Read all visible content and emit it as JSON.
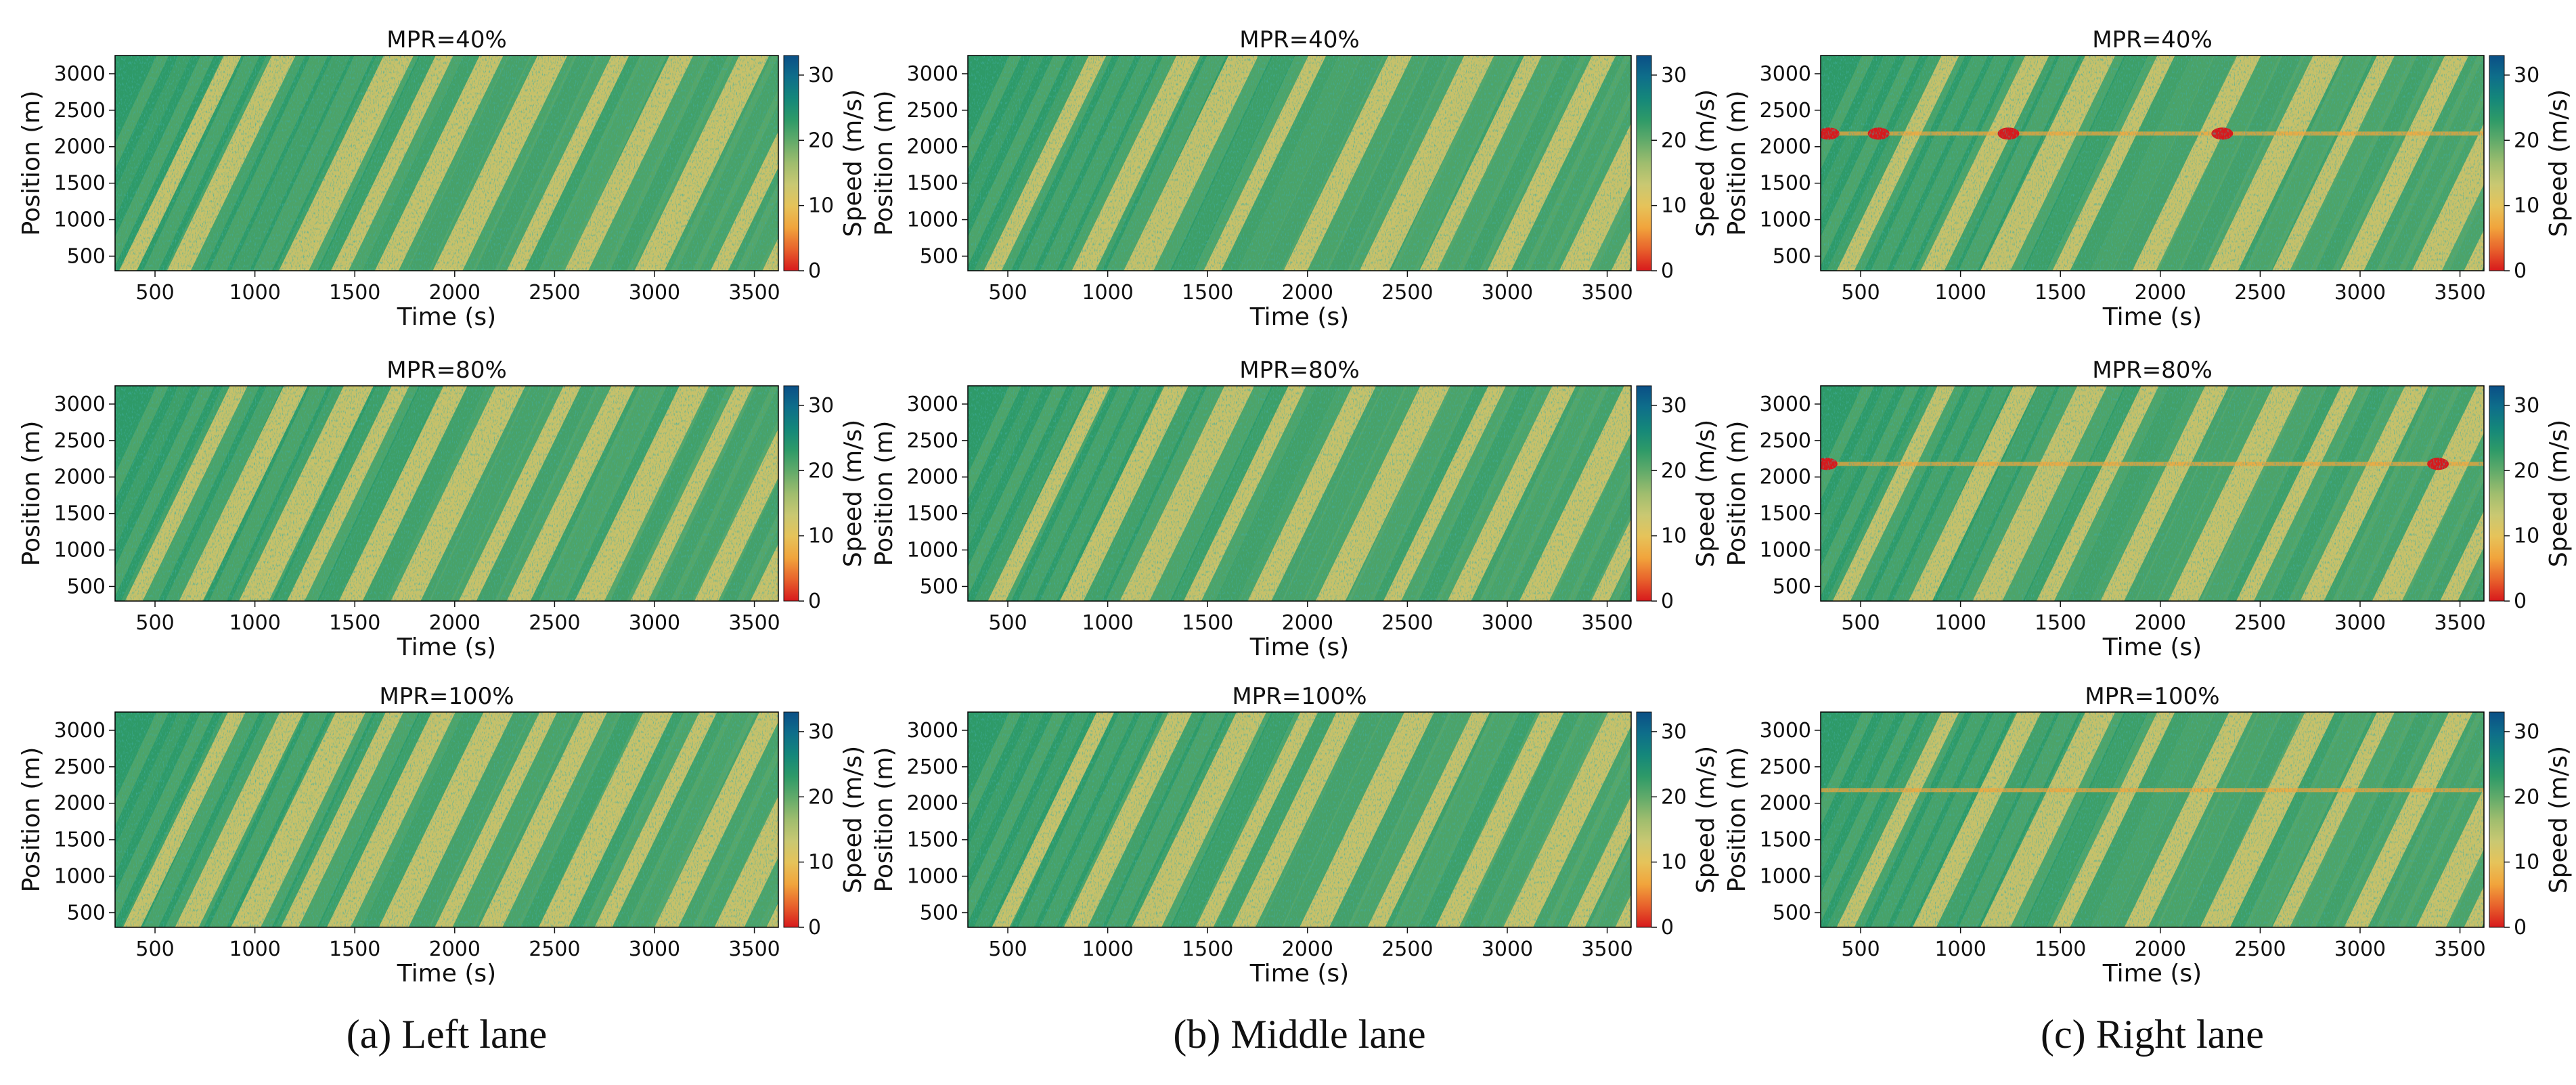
{
  "colors": {
    "speed_scale": [
      "#d7191c",
      "#e8622c",
      "#f1a43c",
      "#e6c35a",
      "#c9c872",
      "#9fbd6e",
      "#63ab6a",
      "#2e9a68",
      "#14877a",
      "#0e6e8a",
      "#0a4f86"
    ],
    "band": "#d8c56a",
    "frame": "#000000"
  },
  "chart_data": [
    {
      "type": "heatmap",
      "panel": "left-40",
      "title": "MPR=40%",
      "xlabel": "Time (s)",
      "ylabel": "Position (m)",
      "colorbar_label": "Speed (m/s)",
      "xlim": [
        300,
        3620
      ],
      "ylim": [
        300,
        3250
      ],
      "clim": [
        0,
        33
      ],
      "xticks": [
        500,
        1000,
        1500,
        2000,
        2500,
        3000,
        3500
      ],
      "yticks": [
        500,
        1000,
        1500,
        2000,
        2500,
        3000
      ],
      "cticks": [
        0,
        10,
        20,
        30
      ],
      "congestion_wave_start_times": [
        320,
        560,
        1120,
        1380,
        1600,
        1890,
        2260,
        2550,
        2900,
        3280,
        3540
      ],
      "bottleneck_position": null,
      "bottleneck_times": []
    },
    {
      "type": "heatmap",
      "panel": "middle-40",
      "title": "MPR=40%",
      "xlabel": "Time (s)",
      "ylabel": "Position (m)",
      "colorbar_label": "Speed (m/s)",
      "xlim": [
        300,
        3620
      ],
      "ylim": [
        300,
        3250
      ],
      "clim": [
        0,
        33
      ],
      "xticks": [
        500,
        1000,
        1500,
        2000,
        2500,
        3000,
        3500
      ],
      "yticks": [
        500,
        1000,
        1500,
        2000,
        2500,
        3000
      ],
      "cticks": [
        0,
        10,
        20,
        30
      ],
      "congestion_wave_start_times": [
        380,
        820,
        1080,
        1480,
        1880,
        2260,
        2560,
        2900,
        3260,
        3520
      ],
      "bottleneck_position": null,
      "bottleneck_times": []
    },
    {
      "type": "heatmap",
      "panel": "right-40",
      "title": "MPR=40%",
      "xlabel": "Time (s)",
      "ylabel": "Position (m)",
      "colorbar_label": "Speed (m/s)",
      "xlim": [
        300,
        3620
      ],
      "ylim": [
        300,
        3250
      ],
      "clim": [
        0,
        33
      ],
      "xticks": [
        500,
        1000,
        1500,
        2000,
        2500,
        3000,
        3500
      ],
      "yticks": [
        500,
        1000,
        1500,
        2000,
        2500,
        3000
      ],
      "cticks": [
        0,
        10,
        20,
        30
      ],
      "congestion_wave_start_times": [
        380,
        800,
        1100,
        1460,
        1860,
        2240,
        2560,
        2900,
        3260,
        3520
      ],
      "bottleneck_position": 2180,
      "bottleneck_times": [
        340,
        590,
        1240,
        2310
      ]
    },
    {
      "type": "heatmap",
      "panel": "left-80",
      "title": "MPR=80%",
      "xlabel": "Time (s)",
      "ylabel": "Position (m)",
      "colorbar_label": "Speed (m/s)",
      "xlim": [
        300,
        3620
      ],
      "ylim": [
        300,
        3250
      ],
      "clim": [
        0,
        33
      ],
      "xticks": [
        500,
        1000,
        1500,
        2000,
        2500,
        3000,
        3500
      ],
      "yticks": [
        500,
        1000,
        1500,
        2000,
        2500,
        3000
      ],
      "cticks": [
        0,
        10,
        20,
        30
      ],
      "congestion_wave_start_times": [
        350,
        620,
        920,
        1160,
        1420,
        1680,
        2020,
        2260,
        2600,
        2880,
        3200,
        3480
      ],
      "bottleneck_position": null,
      "bottleneck_times": []
    },
    {
      "type": "heatmap",
      "panel": "middle-80",
      "title": "MPR=80%",
      "xlabel": "Time (s)",
      "ylabel": "Position (m)",
      "colorbar_label": "Speed (m/s)",
      "xlim": [
        300,
        3620
      ],
      "ylim": [
        300,
        3250
      ],
      "clim": [
        0,
        33
      ],
      "xticks": [
        500,
        1000,
        1500,
        2000,
        2500,
        3000,
        3500
      ],
      "yticks": [
        500,
        1000,
        1500,
        2000,
        2500,
        3000
      ],
      "cticks": [
        0,
        10,
        20,
        30
      ],
      "congestion_wave_start_times": [
        400,
        760,
        1060,
        1380,
        1700,
        2040,
        2380,
        2700,
        3060,
        3420
      ],
      "bottleneck_position": null,
      "bottleneck_times": []
    },
    {
      "type": "heatmap",
      "panel": "right-80",
      "title": "MPR=80%",
      "xlabel": "Time (s)",
      "ylabel": "Position (m)",
      "colorbar_label": "Speed (m/s)",
      "xlim": [
        300,
        3620
      ],
      "ylim": [
        300,
        3250
      ],
      "clim": [
        0,
        33
      ],
      "xticks": [
        500,
        1000,
        1500,
        2000,
        2500,
        3000,
        3500
      ],
      "yticks": [
        500,
        1000,
        1500,
        2000,
        2500,
        3000
      ],
      "cticks": [
        0,
        10,
        20,
        30
      ],
      "congestion_wave_start_times": [
        360,
        740,
        1060,
        1380,
        1700,
        2040,
        2380,
        2700,
        3060,
        3400
      ],
      "bottleneck_position": 2180,
      "bottleneck_times": [
        330,
        3390
      ]
    },
    {
      "type": "heatmap",
      "panel": "left-100",
      "title": "MPR=100%",
      "xlabel": "Time (s)",
      "ylabel": "Position (m)",
      "colorbar_label": "Speed (m/s)",
      "xlim": [
        300,
        3620
      ],
      "ylim": [
        300,
        3250
      ],
      "clim": [
        0,
        33
      ],
      "xticks": [
        500,
        1000,
        1500,
        2000,
        2500,
        3000,
        3500
      ],
      "yticks": [
        500,
        1000,
        1500,
        2000,
        2500,
        3000
      ],
      "cticks": [
        0,
        10,
        20,
        30
      ],
      "congestion_wave_start_times": [
        340,
        600,
        880,
        1130,
        1360,
        1620,
        1900,
        2120,
        2420,
        2700,
        3000,
        3300,
        3560
      ],
      "bottleneck_position": null,
      "bottleneck_times": []
    },
    {
      "type": "heatmap",
      "panel": "middle-100",
      "title": "MPR=100%",
      "xlabel": "Time (s)",
      "ylabel": "Position (m)",
      "colorbar_label": "Speed (m/s)",
      "xlim": [
        300,
        3620
      ],
      "ylim": [
        300,
        3250
      ],
      "clim": [
        0,
        33
      ],
      "xticks": [
        500,
        1000,
        1500,
        2000,
        2500,
        3000,
        3500
      ],
      "yticks": [
        500,
        1000,
        1500,
        2000,
        2500,
        3000
      ],
      "cticks": [
        0,
        10,
        20,
        30
      ],
      "congestion_wave_start_times": [
        420,
        780,
        1120,
        1440,
        1620,
        1960,
        2300,
        2640,
        2980,
        3300,
        3540
      ],
      "bottleneck_position": null,
      "bottleneck_times": []
    },
    {
      "type": "heatmap",
      "panel": "right-100",
      "title": "MPR=100%",
      "xlabel": "Time (s)",
      "ylabel": "Position (m)",
      "colorbar_label": "Speed (m/s)",
      "xlim": [
        300,
        3620
      ],
      "ylim": [
        300,
        3250
      ],
      "clim": [
        0,
        33
      ],
      "xticks": [
        500,
        1000,
        1500,
        2000,
        2500,
        3000,
        3500
      ],
      "yticks": [
        500,
        1000,
        1500,
        2000,
        2500,
        3000
      ],
      "cticks": [
        0,
        10,
        20,
        30
      ],
      "congestion_wave_start_times": [
        380,
        760,
        1100,
        1460,
        1820,
        2200,
        2560,
        2920,
        3280,
        3520
      ],
      "bottleneck_position": 2180,
      "bottleneck_times": []
    }
  ],
  "captions": [
    "(a) Left lane",
    "(b) Middle lane",
    "(c) Right lane"
  ]
}
